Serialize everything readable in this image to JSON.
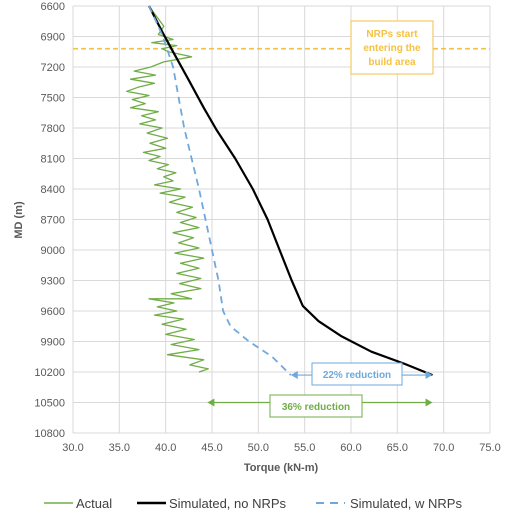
{
  "chart_data": {
    "type": "line",
    "xlabel": "Torque (kN-m)",
    "ylabel": "MD (m)",
    "xlim": [
      30.0,
      75.0
    ],
    "ylim": [
      6600,
      10800
    ],
    "y_inverted": true,
    "x_ticks": [
      "30.0",
      "35.0",
      "40.0",
      "45.0",
      "50.0",
      "55.0",
      "60.0",
      "65.0",
      "70.0",
      "75.0"
    ],
    "y_ticks": [
      "6600",
      "6900",
      "7200",
      "7500",
      "7800",
      "8100",
      "8400",
      "8700",
      "9000",
      "9300",
      "9600",
      "9900",
      "10200",
      "10500",
      "10800"
    ],
    "grid": true,
    "legend": "bottom",
    "series": [
      {
        "name": "Actual",
        "color": "#70ad47",
        "style": "solid",
        "points": [
          [
            38.2,
            6600
          ],
          [
            39.0,
            6700
          ],
          [
            39.8,
            6800
          ],
          [
            39.2,
            6880
          ],
          [
            40.8,
            6930
          ],
          [
            38.5,
            6960
          ],
          [
            41.2,
            6990
          ],
          [
            39.6,
            7020
          ],
          [
            40.3,
            7050
          ],
          [
            42.8,
            7100
          ],
          [
            39.8,
            7150
          ],
          [
            38.4,
            7200
          ],
          [
            36.6,
            7240
          ],
          [
            38.9,
            7280
          ],
          [
            36.2,
            7320
          ],
          [
            38.8,
            7360
          ],
          [
            37.0,
            7400
          ],
          [
            35.8,
            7440
          ],
          [
            38.2,
            7480
          ],
          [
            36.4,
            7520
          ],
          [
            37.8,
            7560
          ],
          [
            36.2,
            7600
          ],
          [
            39.2,
            7640
          ],
          [
            37.4,
            7680
          ],
          [
            38.9,
            7720
          ],
          [
            37.2,
            7760
          ],
          [
            39.6,
            7800
          ],
          [
            38.0,
            7850
          ],
          [
            40.2,
            7900
          ],
          [
            38.3,
            7950
          ],
          [
            40.0,
            8000
          ],
          [
            37.6,
            8040
          ],
          [
            39.4,
            8080
          ],
          [
            38.2,
            8120
          ],
          [
            40.3,
            8160
          ],
          [
            39.1,
            8200
          ],
          [
            41.1,
            8240
          ],
          [
            39.8,
            8280
          ],
          [
            40.8,
            8320
          ],
          [
            38.8,
            8360
          ],
          [
            41.6,
            8400
          ],
          [
            39.4,
            8440
          ],
          [
            42.1,
            8480
          ],
          [
            40.4,
            8530
          ],
          [
            42.9,
            8580
          ],
          [
            41.2,
            8630
          ],
          [
            43.3,
            8680
          ],
          [
            41.6,
            8730
          ],
          [
            43.6,
            8780
          ],
          [
            40.8,
            8830
          ],
          [
            43.0,
            8880
          ],
          [
            41.4,
            8930
          ],
          [
            43.6,
            8980
          ],
          [
            41.0,
            9030
          ],
          [
            44.1,
            9080
          ],
          [
            41.6,
            9130
          ],
          [
            43.6,
            9180
          ],
          [
            41.2,
            9230
          ],
          [
            43.8,
            9280
          ],
          [
            41.5,
            9330
          ],
          [
            43.8,
            9380
          ],
          [
            40.6,
            9430
          ],
          [
            42.8,
            9480
          ],
          [
            38.2,
            9480
          ],
          [
            40.9,
            9520
          ],
          [
            39.1,
            9560
          ],
          [
            41.2,
            9600
          ],
          [
            38.8,
            9640
          ],
          [
            41.9,
            9680
          ],
          [
            39.6,
            9730
          ],
          [
            42.2,
            9780
          ],
          [
            40.0,
            9830
          ],
          [
            43.1,
            9880
          ],
          [
            40.6,
            9930
          ],
          [
            43.6,
            9980
          ],
          [
            40.2,
            10030
          ],
          [
            44.1,
            10080
          ],
          [
            42.6,
            10130
          ],
          [
            44.6,
            10170
          ],
          [
            43.6,
            10200
          ]
        ]
      },
      {
        "name": "Simulated, no NRPs",
        "color": "#000000",
        "style": "solid",
        "points": [
          [
            38.2,
            6600
          ],
          [
            39.6,
            6850
          ],
          [
            40.8,
            7050
          ],
          [
            42.5,
            7330
          ],
          [
            44.1,
            7600
          ],
          [
            45.5,
            7820
          ],
          [
            47.5,
            8100
          ],
          [
            49.4,
            8400
          ],
          [
            51.0,
            8700
          ],
          [
            52.3,
            9000
          ],
          [
            53.6,
            9300
          ],
          [
            54.8,
            9550
          ],
          [
            56.5,
            9700
          ],
          [
            59.0,
            9850
          ],
          [
            62.2,
            10000
          ],
          [
            65.8,
            10120
          ],
          [
            68.8,
            10230
          ]
        ]
      },
      {
        "name": "Simulated, w NRPs",
        "color": "#6fa8dc",
        "style": "dashed",
        "points": [
          [
            38.2,
            6600
          ],
          [
            39.7,
            6900
          ],
          [
            40.8,
            7200
          ],
          [
            41.4,
            7500
          ],
          [
            42.0,
            7800
          ],
          [
            42.8,
            8100
          ],
          [
            43.6,
            8400
          ],
          [
            44.3,
            8700
          ],
          [
            45.0,
            9000
          ],
          [
            45.7,
            9300
          ],
          [
            46.2,
            9600
          ],
          [
            47.0,
            9750
          ],
          [
            49.0,
            9900
          ],
          [
            51.5,
            10050
          ],
          [
            53.5,
            10230
          ]
        ]
      }
    ],
    "annotations": [
      {
        "id": "nrps",
        "text_lines": [
          "NRPs start",
          "entering the",
          "build area"
        ],
        "color": "#f4c242",
        "line_y": 7020
      },
      {
        "id": "reduction22",
        "text": "22% reduction",
        "color": "#6fa8dc",
        "arrow_x": [
          53.5,
          68.8
        ],
        "arrow_y": 10230
      },
      {
        "id": "reduction36",
        "text": "36% reduction",
        "color": "#70ad47",
        "arrow_x": [
          44.5,
          68.8
        ],
        "arrow_y": 10500
      }
    ]
  }
}
